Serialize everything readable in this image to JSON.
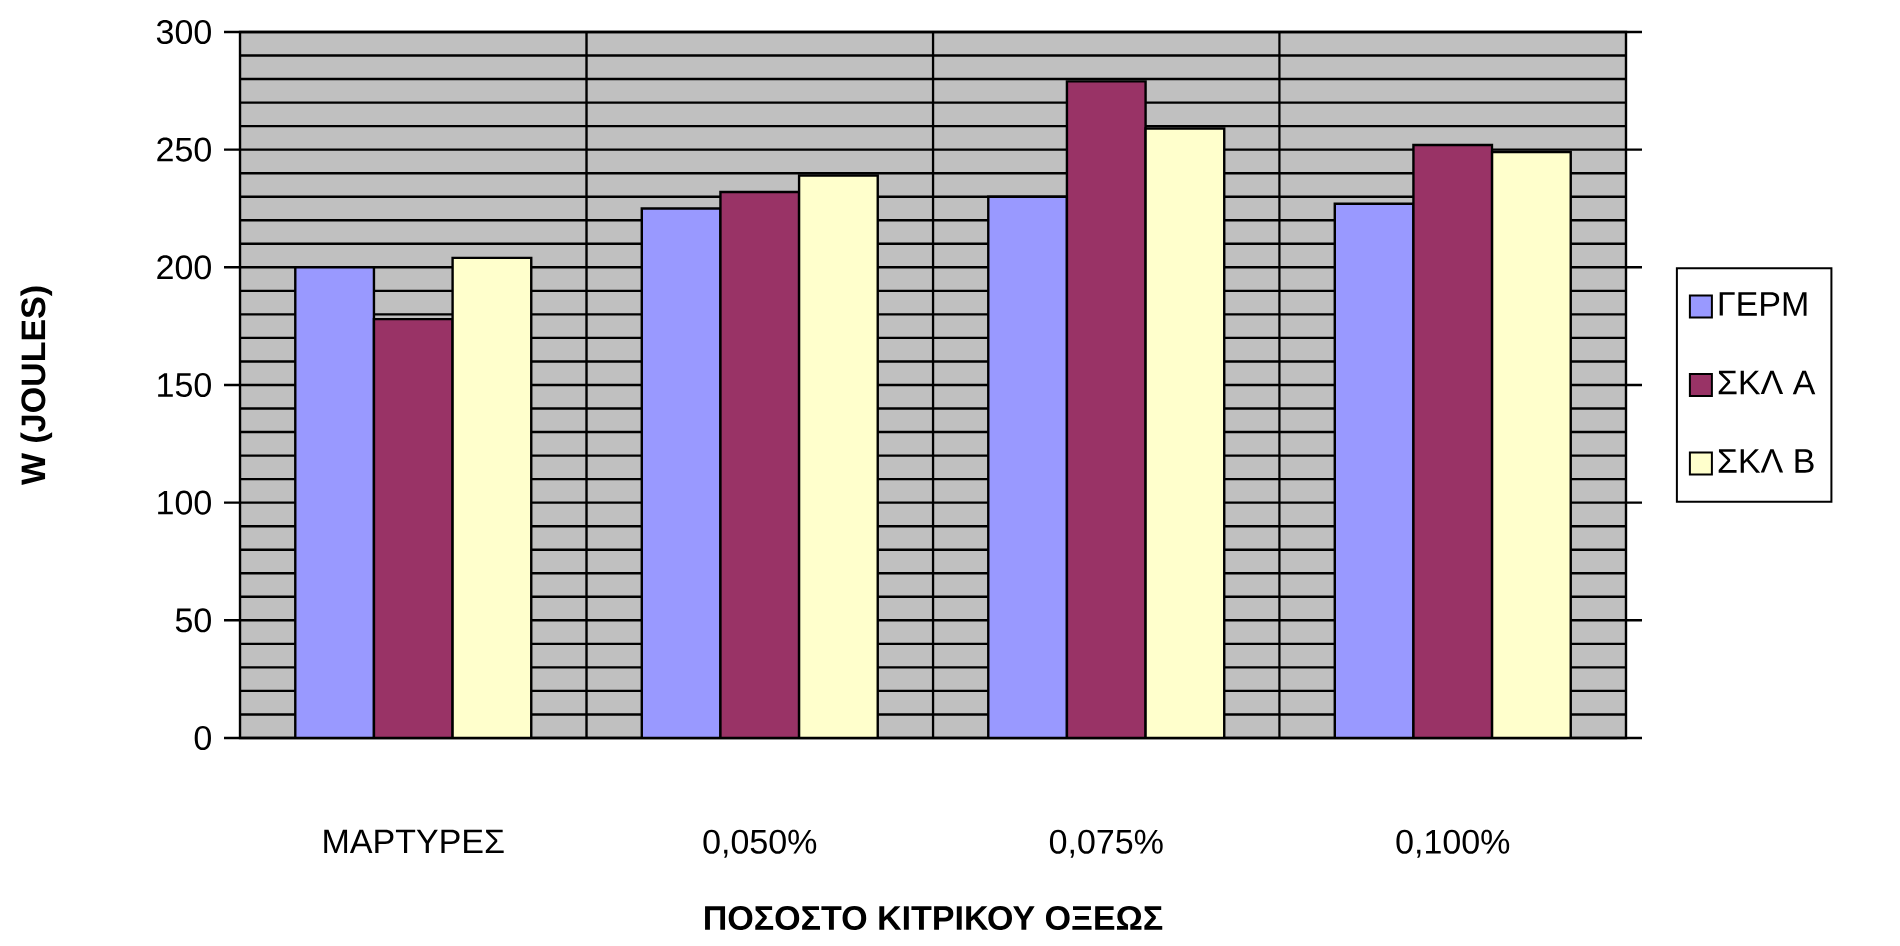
{
  "chart_data": {
    "type": "bar",
    "xlabel": "ΠΟΣΟΣΤΟ ΚΙΤΡΙΚΟΥ ΟΞΕΩΣ",
    "ylabel": "W (JOULES)",
    "categories": [
      "ΜΑΡΤΥΡΕΣ",
      "0,050%",
      "0,075%",
      "0,100%"
    ],
    "series": [
      {
        "name": "ΓΕΡΜ",
        "color": "#9999ff",
        "values": [
          200,
          225,
          230,
          227
        ]
      },
      {
        "name": "ΣΚΛ Α",
        "color": "#993366",
        "values": [
          178,
          232,
          279,
          252
        ]
      },
      {
        "name": "ΣΚΛ Β",
        "color": "#ffffcc",
        "values": [
          204,
          239,
          259,
          249
        ]
      }
    ],
    "ylim": [
      0,
      300
    ],
    "yticks": [
      0,
      50,
      100,
      150,
      200,
      250,
      300
    ],
    "grid": true,
    "legend": "right"
  }
}
